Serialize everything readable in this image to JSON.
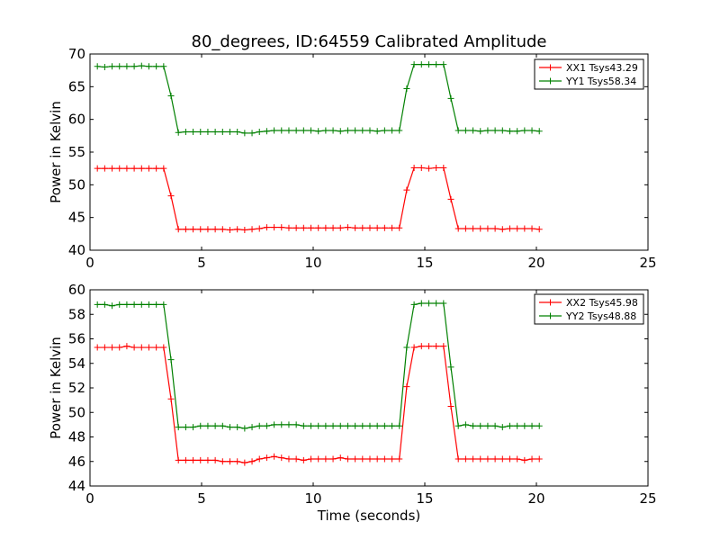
{
  "title": "80_degrees, ID:64559 Calibrated Amplitude",
  "chart_data": [
    {
      "type": "line",
      "panel": "top",
      "title": "80_degrees, ID:64559 Calibrated Amplitude",
      "xlabel": "",
      "ylabel": "Power in Kelvin",
      "xlim": [
        0,
        25
      ],
      "ylim": [
        40,
        70
      ],
      "xticks": [
        0,
        5,
        10,
        15,
        20,
        25
      ],
      "yticks": [
        40,
        45,
        50,
        55,
        60,
        65,
        70
      ],
      "legend_position": "top-right",
      "series": [
        {
          "name": "XX1 Tsys43.29",
          "color": "#ff0000",
          "x": [
            0.33,
            0.66,
            0.99,
            1.32,
            1.65,
            1.98,
            2.31,
            2.64,
            2.97,
            3.3,
            3.63,
            3.96,
            4.29,
            4.62,
            4.95,
            5.28,
            5.61,
            5.94,
            6.27,
            6.6,
            6.93,
            7.26,
            7.59,
            7.92,
            8.25,
            8.58,
            8.91,
            9.24,
            9.57,
            9.9,
            10.23,
            10.56,
            10.89,
            11.22,
            11.55,
            11.88,
            12.21,
            12.54,
            12.87,
            13.2,
            13.53,
            13.86,
            14.19,
            14.52,
            14.85,
            15.18,
            15.51,
            15.84,
            16.17,
            16.5,
            16.83,
            17.16,
            17.49,
            17.82,
            18.15,
            18.48,
            18.81,
            19.14,
            19.47,
            19.8,
            20.13
          ],
          "y": [
            52.5,
            52.5,
            52.5,
            52.5,
            52.5,
            52.5,
            52.5,
            52.5,
            52.5,
            52.5,
            48.3,
            43.2,
            43.2,
            43.2,
            43.2,
            43.2,
            43.2,
            43.2,
            43.1,
            43.2,
            43.1,
            43.2,
            43.3,
            43.5,
            43.5,
            43.5,
            43.4,
            43.4,
            43.4,
            43.4,
            43.4,
            43.4,
            43.4,
            43.4,
            43.5,
            43.4,
            43.4,
            43.4,
            43.4,
            43.4,
            43.4,
            43.4,
            49.2,
            52.6,
            52.6,
            52.5,
            52.6,
            52.6,
            47.8,
            43.3,
            43.3,
            43.3,
            43.3,
            43.3,
            43.3,
            43.2,
            43.3,
            43.3,
            43.3,
            43.3,
            43.2
          ]
        },
        {
          "name": "YY1 Tsys58.34",
          "color": "#008000",
          "x": [
            0.33,
            0.66,
            0.99,
            1.32,
            1.65,
            1.98,
            2.31,
            2.64,
            2.97,
            3.3,
            3.63,
            3.96,
            4.29,
            4.62,
            4.95,
            5.28,
            5.61,
            5.94,
            6.27,
            6.6,
            6.93,
            7.26,
            7.59,
            7.92,
            8.25,
            8.58,
            8.91,
            9.24,
            9.57,
            9.9,
            10.23,
            10.56,
            10.89,
            11.22,
            11.55,
            11.88,
            12.21,
            12.54,
            12.87,
            13.2,
            13.53,
            13.86,
            14.19,
            14.52,
            14.85,
            15.18,
            15.51,
            15.84,
            16.17,
            16.5,
            16.83,
            17.16,
            17.49,
            17.82,
            18.15,
            18.48,
            18.81,
            19.14,
            19.47,
            19.8,
            20.13
          ],
          "y": [
            68.1,
            68.0,
            68.1,
            68.1,
            68.1,
            68.1,
            68.2,
            68.1,
            68.1,
            68.1,
            63.6,
            58.0,
            58.1,
            58.1,
            58.1,
            58.1,
            58.1,
            58.1,
            58.1,
            58.1,
            57.9,
            57.9,
            58.1,
            58.2,
            58.3,
            58.3,
            58.3,
            58.3,
            58.3,
            58.3,
            58.2,
            58.3,
            58.3,
            58.2,
            58.3,
            58.3,
            58.3,
            58.3,
            58.2,
            58.3,
            58.3,
            58.3,
            64.7,
            68.4,
            68.4,
            68.4,
            68.4,
            68.4,
            63.2,
            58.3,
            58.3,
            58.3,
            58.2,
            58.3,
            58.3,
            58.3,
            58.2,
            58.2,
            58.3,
            58.3,
            58.2
          ]
        }
      ]
    },
    {
      "type": "line",
      "panel": "bottom",
      "title": "",
      "xlabel": "Time (seconds)",
      "ylabel": "Power in Kelvin",
      "xlim": [
        0,
        25
      ],
      "ylim": [
        44,
        60
      ],
      "xticks": [
        0,
        5,
        10,
        15,
        20,
        25
      ],
      "yticks": [
        44,
        46,
        48,
        50,
        52,
        54,
        56,
        58,
        60
      ],
      "legend_position": "top-right",
      "series": [
        {
          "name": "XX2 Tsys45.98",
          "color": "#ff0000",
          "x": [
            0.33,
            0.66,
            0.99,
            1.32,
            1.65,
            1.98,
            2.31,
            2.64,
            2.97,
            3.3,
            3.63,
            3.96,
            4.29,
            4.62,
            4.95,
            5.28,
            5.61,
            5.94,
            6.27,
            6.6,
            6.93,
            7.26,
            7.59,
            7.92,
            8.25,
            8.58,
            8.91,
            9.24,
            9.57,
            9.9,
            10.23,
            10.56,
            10.89,
            11.22,
            11.55,
            11.88,
            12.21,
            12.54,
            12.87,
            13.2,
            13.53,
            13.86,
            14.19,
            14.52,
            14.85,
            15.18,
            15.51,
            15.84,
            16.17,
            16.5,
            16.83,
            17.16,
            17.49,
            17.82,
            18.15,
            18.48,
            18.81,
            19.14,
            19.47,
            19.8,
            20.13
          ],
          "y": [
            55.3,
            55.3,
            55.3,
            55.3,
            55.4,
            55.3,
            55.3,
            55.3,
            55.3,
            55.3,
            51.1,
            46.1,
            46.1,
            46.1,
            46.1,
            46.1,
            46.1,
            46.0,
            46.0,
            46.0,
            45.9,
            46.0,
            46.2,
            46.3,
            46.4,
            46.3,
            46.2,
            46.2,
            46.1,
            46.2,
            46.2,
            46.2,
            46.2,
            46.3,
            46.2,
            46.2,
            46.2,
            46.2,
            46.2,
            46.2,
            46.2,
            46.2,
            52.1,
            55.3,
            55.4,
            55.4,
            55.4,
            55.4,
            50.5,
            46.2,
            46.2,
            46.2,
            46.2,
            46.2,
            46.2,
            46.2,
            46.2,
            46.2,
            46.1,
            46.2,
            46.2
          ]
        },
        {
          "name": "YY2 Tsys48.88",
          "color": "#008000",
          "x": [
            0.33,
            0.66,
            0.99,
            1.32,
            1.65,
            1.98,
            2.31,
            2.64,
            2.97,
            3.3,
            3.63,
            3.96,
            4.29,
            4.62,
            4.95,
            5.28,
            5.61,
            5.94,
            6.27,
            6.6,
            6.93,
            7.26,
            7.59,
            7.92,
            8.25,
            8.58,
            8.91,
            9.24,
            9.57,
            9.9,
            10.23,
            10.56,
            10.89,
            11.22,
            11.55,
            11.88,
            12.21,
            12.54,
            12.87,
            13.2,
            13.53,
            13.86,
            14.19,
            14.52,
            14.85,
            15.18,
            15.51,
            15.84,
            16.17,
            16.5,
            16.83,
            17.16,
            17.49,
            17.82,
            18.15,
            18.48,
            18.81,
            19.14,
            19.47,
            19.8,
            20.13
          ],
          "y": [
            58.8,
            58.8,
            58.7,
            58.8,
            58.8,
            58.8,
            58.8,
            58.8,
            58.8,
            58.8,
            54.3,
            48.8,
            48.8,
            48.8,
            48.9,
            48.9,
            48.9,
            48.9,
            48.8,
            48.8,
            48.7,
            48.8,
            48.9,
            48.9,
            49.0,
            49.0,
            49.0,
            49.0,
            48.9,
            48.9,
            48.9,
            48.9,
            48.9,
            48.9,
            48.9,
            48.9,
            48.9,
            48.9,
            48.9,
            48.9,
            48.9,
            48.9,
            55.3,
            58.8,
            58.9,
            58.9,
            58.9,
            58.9,
            53.7,
            48.9,
            49.0,
            48.9,
            48.9,
            48.9,
            48.9,
            48.8,
            48.9,
            48.9,
            48.9,
            48.9,
            48.9
          ]
        }
      ]
    }
  ]
}
